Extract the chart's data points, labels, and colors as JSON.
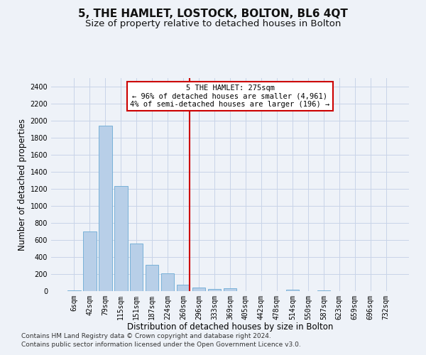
{
  "title": "5, THE HAMLET, LOSTOCK, BOLTON, BL6 4QT",
  "subtitle": "Size of property relative to detached houses in Bolton",
  "xlabel": "Distribution of detached houses by size in Bolton",
  "ylabel": "Number of detached properties",
  "footer_line1": "Contains HM Land Registry data © Crown copyright and database right 2024.",
  "footer_line2": "Contains public sector information licensed under the Open Government Licence v3.0.",
  "bar_labels": [
    "6sqm",
    "42sqm",
    "79sqm",
    "115sqm",
    "151sqm",
    "187sqm",
    "224sqm",
    "260sqm",
    "296sqm",
    "333sqm",
    "369sqm",
    "405sqm",
    "442sqm",
    "478sqm",
    "514sqm",
    "550sqm",
    "587sqm",
    "623sqm",
    "659sqm",
    "696sqm",
    "732sqm"
  ],
  "bar_values": [
    10,
    700,
    1940,
    1230,
    560,
    305,
    205,
    75,
    40,
    25,
    30,
    0,
    0,
    0,
    20,
    0,
    10,
    0,
    0,
    0,
    0
  ],
  "bar_color": "#b8cfe8",
  "bar_edge_color": "#6aaad4",
  "grid_color": "#c8d4e8",
  "background_color": "#eef2f8",
  "vline_x": 7.42,
  "vline_color": "#cc0000",
  "annotation_text": "5 THE HAMLET: 275sqm\n← 96% of detached houses are smaller (4,961)\n4% of semi-detached houses are larger (196) →",
  "annotation_box_color": "#cc0000",
  "ylim": [
    0,
    2400
  ],
  "ylim_display": 2500,
  "yticks": [
    0,
    200,
    400,
    600,
    800,
    1000,
    1200,
    1400,
    1600,
    1800,
    2000,
    2200,
    2400
  ],
  "title_fontsize": 11,
  "subtitle_fontsize": 9.5,
  "xlabel_fontsize": 8.5,
  "ylabel_fontsize": 8.5,
  "tick_fontsize": 7,
  "annotation_fontsize": 7.5,
  "footer_fontsize": 6.5
}
